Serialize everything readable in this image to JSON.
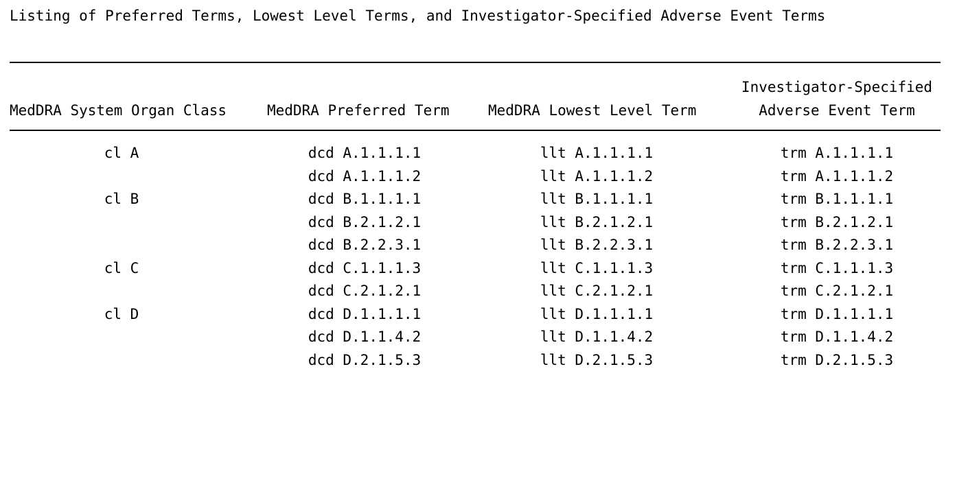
{
  "title": "Listing of Preferred Terms, Lowest Level Terms, and Investigator-Specified Adverse Event Terms",
  "columns": {
    "soc": "MedDRA System Organ Class",
    "pt": "MedDRA Preferred Term",
    "llt": "MedDRA Lowest Level Term",
    "ae_line1": "Investigator-Specified",
    "ae_line2": "Adverse Event Term"
  },
  "rows": [
    {
      "soc": "cl A",
      "pt": "dcd A.1.1.1.1",
      "llt": "llt A.1.1.1.1",
      "ae": "trm A.1.1.1.1"
    },
    {
      "soc": "",
      "pt": "dcd A.1.1.1.2",
      "llt": "llt A.1.1.1.2",
      "ae": "trm A.1.1.1.2"
    },
    {
      "soc": "cl B",
      "pt": "dcd B.1.1.1.1",
      "llt": "llt B.1.1.1.1",
      "ae": "trm B.1.1.1.1"
    },
    {
      "soc": "",
      "pt": "dcd B.2.1.2.1",
      "llt": "llt B.2.1.2.1",
      "ae": "trm B.2.1.2.1"
    },
    {
      "soc": "",
      "pt": "dcd B.2.2.3.1",
      "llt": "llt B.2.2.3.1",
      "ae": "trm B.2.2.3.1"
    },
    {
      "soc": "cl C",
      "pt": "dcd C.1.1.1.3",
      "llt": "llt C.1.1.1.3",
      "ae": "trm C.1.1.1.3"
    },
    {
      "soc": "",
      "pt": "dcd C.2.1.2.1",
      "llt": "llt C.2.1.2.1",
      "ae": "trm C.2.1.2.1"
    },
    {
      "soc": "cl D",
      "pt": "dcd D.1.1.1.1",
      "llt": "llt D.1.1.1.1",
      "ae": "trm D.1.1.1.1"
    },
    {
      "soc": "",
      "pt": "dcd D.1.1.4.2",
      "llt": "llt D.1.1.4.2",
      "ae": "trm D.1.1.4.2"
    },
    {
      "soc": "",
      "pt": "dcd D.2.1.5.3",
      "llt": "llt D.2.1.5.3",
      "ae": "trm D.2.1.5.3"
    }
  ]
}
